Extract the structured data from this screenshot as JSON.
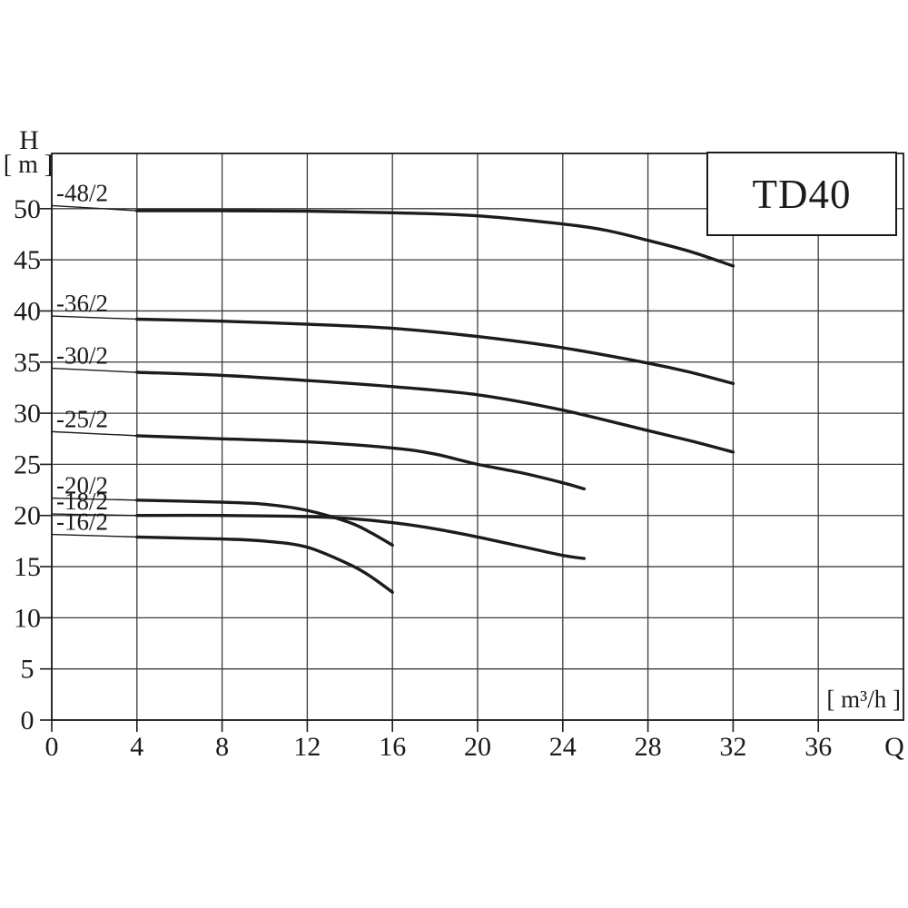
{
  "page": {
    "background": "#ffffff"
  },
  "title_box": {
    "label": "TD40"
  },
  "y_axis": {
    "name": "H",
    "unit": "[ m ]"
  },
  "x_axis": {
    "name": "Q",
    "unit": "[ m³/h ]"
  },
  "styles": {
    "curve_color": "#1c1c1c",
    "grid_color": "#3c3c3c",
    "frame_color": "#1c1c1c",
    "text_color": "#1b1b1b",
    "tick_label_size": 30,
    "curve_label_size": 27
  },
  "chart_data": {
    "type": "line",
    "title": "TD40",
    "xlabel": "Q [ m³/h ]",
    "ylabel": "H [ m ]",
    "xlim": [
      0,
      40
    ],
    "ylim": [
      0,
      55.4
    ],
    "x_ticks": [
      0,
      4,
      8,
      12,
      16,
      20,
      24,
      28,
      32,
      36
    ],
    "y_ticks": [
      0,
      5,
      10,
      15,
      20,
      25,
      30,
      35,
      40,
      45,
      50
    ],
    "grid": true,
    "legend_position": "curve-labels-left",
    "series": [
      {
        "name": "-48/2",
        "label_axis_h": 50.3,
        "points": [
          [
            4,
            49.8
          ],
          [
            8,
            49.8
          ],
          [
            12,
            49.75
          ],
          [
            16,
            49.6
          ],
          [
            20,
            49.3
          ],
          [
            24,
            48.5
          ],
          [
            26,
            47.9
          ],
          [
            28,
            46.9
          ],
          [
            30,
            45.8
          ],
          [
            32,
            44.4
          ]
        ]
      },
      {
        "name": "-36/2",
        "label_axis_h": 39.5,
        "points": [
          [
            4,
            39.2
          ],
          [
            8,
            39.0
          ],
          [
            12,
            38.7
          ],
          [
            16,
            38.3
          ],
          [
            20,
            37.5
          ],
          [
            24,
            36.4
          ],
          [
            28,
            34.9
          ],
          [
            30,
            34.0
          ],
          [
            32,
            32.9
          ]
        ]
      },
      {
        "name": "-30/2",
        "label_axis_h": 34.4,
        "points": [
          [
            4,
            34.0
          ],
          [
            8,
            33.7
          ],
          [
            12,
            33.2
          ],
          [
            16,
            32.6
          ],
          [
            20,
            31.8
          ],
          [
            24,
            30.3
          ],
          [
            28,
            28.3
          ],
          [
            30,
            27.3
          ],
          [
            32,
            26.2
          ]
        ]
      },
      {
        "name": "-25/2",
        "label_axis_h": 28.2,
        "points": [
          [
            4,
            27.8
          ],
          [
            8,
            27.5
          ],
          [
            12,
            27.2
          ],
          [
            16,
            26.6
          ],
          [
            18,
            26.0
          ],
          [
            20,
            25.0
          ],
          [
            22,
            24.2
          ],
          [
            24,
            23.2
          ],
          [
            25,
            22.6
          ]
        ]
      },
      {
        "name": "-20/2",
        "label_axis_h": 21.7,
        "points": [
          [
            4,
            21.5
          ],
          [
            8,
            21.3
          ],
          [
            10,
            21.1
          ],
          [
            12,
            20.5
          ],
          [
            14,
            19.3
          ],
          [
            15,
            18.3
          ],
          [
            16,
            17.1
          ]
        ]
      },
      {
        "name": "-18/2",
        "label_axis_h": 20.15,
        "points": [
          [
            4,
            20.0
          ],
          [
            8,
            20.0
          ],
          [
            12,
            19.9
          ],
          [
            14,
            19.7
          ],
          [
            16,
            19.3
          ],
          [
            18,
            18.7
          ],
          [
            20,
            17.9
          ],
          [
            22,
            17.0
          ],
          [
            24,
            16.1
          ],
          [
            25,
            15.8
          ]
        ]
      },
      {
        "name": "-16/2",
        "label_axis_h": 18.15,
        "points": [
          [
            4,
            17.9
          ],
          [
            8,
            17.7
          ],
          [
            10,
            17.5
          ],
          [
            12,
            16.9
          ],
          [
            14,
            15.2
          ],
          [
            15,
            14.0
          ],
          [
            16,
            12.5
          ]
        ]
      }
    ]
  }
}
